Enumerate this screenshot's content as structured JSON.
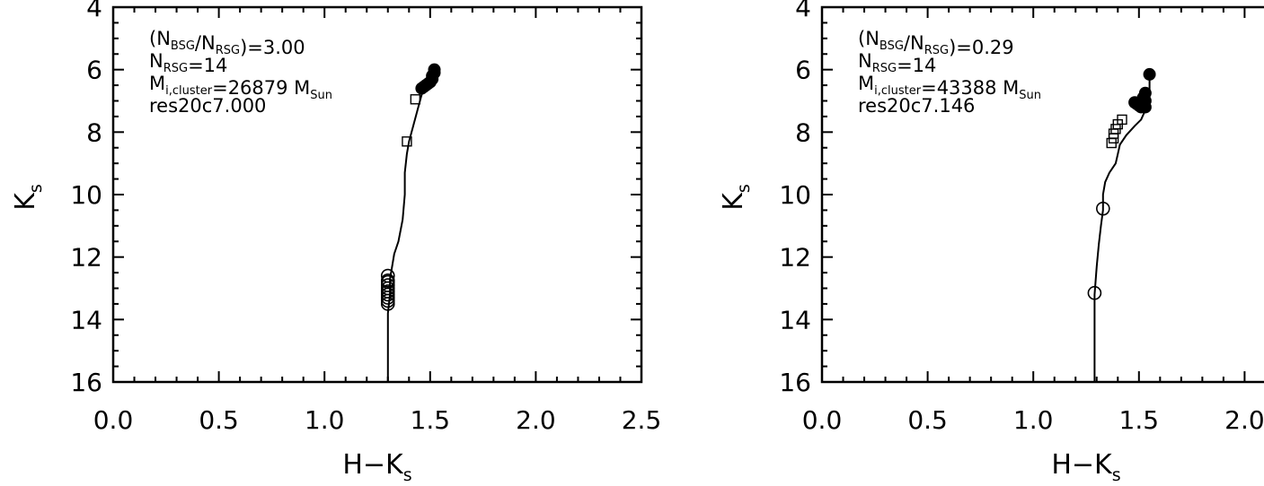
{
  "chart_data": [
    {
      "type": "scatter",
      "xlabel": "H−K",
      "xlabel_sub": "s",
      "ylabel": "K",
      "ylabel_sub": "s",
      "xlim": [
        0.0,
        2.5
      ],
      "ylim": [
        16,
        4
      ],
      "y_inverted": true,
      "x_ticks": [
        "0.0",
        "0.5",
        "1.0",
        "1.5",
        "2.0",
        "2.5"
      ],
      "y_ticks": [
        "4",
        "6",
        "8",
        "10",
        "12",
        "14",
        "16"
      ],
      "annotations": [
        {
          "segments": [
            {
              "t": "(N"
            },
            {
              "t": "BSG",
              "sub": true
            },
            {
              "t": "/N"
            },
            {
              "t": "RSG",
              "sub": true
            },
            {
              "t": ")=3.00"
            }
          ]
        },
        {
          "segments": [
            {
              "t": "N"
            },
            {
              "t": "RSG",
              "sub": true
            },
            {
              "t": "=14"
            }
          ]
        },
        {
          "segments": [
            {
              "t": "M"
            },
            {
              "t": "i,cluster",
              "sub": true
            },
            {
              "t": "=26879 M"
            },
            {
              "t": "Sun",
              "sub": true
            }
          ]
        },
        {
          "segments": [
            {
              "t": "res20c7.000"
            }
          ]
        }
      ],
      "track": [
        [
          1.3,
          16.0
        ],
        [
          1.3,
          15.0
        ],
        [
          1.3,
          13.8
        ],
        [
          1.31,
          13.2
        ],
        [
          1.31,
          12.7
        ],
        [
          1.32,
          12.3
        ],
        [
          1.33,
          11.9
        ],
        [
          1.35,
          11.5
        ],
        [
          1.37,
          10.8
        ],
        [
          1.38,
          10.0
        ],
        [
          1.38,
          9.3
        ],
        [
          1.39,
          8.7
        ],
        [
          1.4,
          8.3
        ],
        [
          1.42,
          7.8
        ],
        [
          1.44,
          7.3
        ],
        [
          1.46,
          6.8
        ],
        [
          1.49,
          6.5
        ],
        [
          1.51,
          6.3
        ],
        [
          1.52,
          6.1
        ]
      ],
      "series": [
        {
          "marker": "filled-circle",
          "x": [
            1.46,
            1.47,
            1.48,
            1.49,
            1.5,
            1.51,
            1.51,
            1.52,
            1.52
          ],
          "y": [
            6.6,
            6.55,
            6.5,
            6.45,
            6.4,
            6.3,
            6.2,
            6.1,
            6.0
          ]
        },
        {
          "marker": "open-circle",
          "x": [
            1.3,
            1.3,
            1.3,
            1.3,
            1.3,
            1.3,
            1.3,
            1.3,
            1.3,
            1.3
          ],
          "y": [
            12.6,
            12.75,
            12.9,
            13.0,
            13.1,
            13.2,
            13.3,
            13.4,
            13.5,
            12.8
          ]
        },
        {
          "marker": "open-square",
          "x": [
            1.43,
            1.39
          ],
          "y": [
            6.95,
            8.3
          ]
        }
      ]
    },
    {
      "type": "scatter",
      "xlabel": "H−K",
      "xlabel_sub": "s",
      "ylabel": "K",
      "ylabel_sub": "s",
      "xlim": [
        0.0,
        2.5
      ],
      "ylim": [
        16,
        4
      ],
      "y_inverted": true,
      "x_ticks": [
        "0.0",
        "0.5",
        "1.0",
        "1.5",
        "2.0"
      ],
      "y_ticks": [
        "4",
        "6",
        "8",
        "10",
        "12",
        "14",
        "16"
      ],
      "annotations": [
        {
          "segments": [
            {
              "t": "(N"
            },
            {
              "t": "BSG",
              "sub": true
            },
            {
              "t": "/N"
            },
            {
              "t": "RSG",
              "sub": true
            },
            {
              "t": ")=0.29"
            }
          ]
        },
        {
          "segments": [
            {
              "t": "N"
            },
            {
              "t": "RSG",
              "sub": true
            },
            {
              "t": "=14"
            }
          ]
        },
        {
          "segments": [
            {
              "t": "M"
            },
            {
              "t": "i,cluster",
              "sub": true
            },
            {
              "t": "=43388 M"
            },
            {
              "t": "Sun",
              "sub": true
            }
          ]
        },
        {
          "segments": [
            {
              "t": "res20c7.146"
            }
          ]
        }
      ],
      "track": [
        [
          1.29,
          16.0
        ],
        [
          1.29,
          15.2
        ],
        [
          1.29,
          14.0
        ],
        [
          1.29,
          13.2
        ],
        [
          1.3,
          12.3
        ],
        [
          1.31,
          11.6
        ],
        [
          1.32,
          11.0
        ],
        [
          1.33,
          10.5
        ],
        [
          1.33,
          10.0
        ],
        [
          1.34,
          9.6
        ],
        [
          1.36,
          9.3
        ],
        [
          1.39,
          9.0
        ],
        [
          1.4,
          8.7
        ],
        [
          1.41,
          8.4
        ],
        [
          1.44,
          8.1
        ],
        [
          1.48,
          7.8
        ],
        [
          1.51,
          7.6
        ],
        [
          1.53,
          7.3
        ],
        [
          1.55,
          6.9
        ],
        [
          1.55,
          6.2
        ]
      ],
      "series": [
        {
          "marker": "filled-circle",
          "x": [
            1.55,
            1.48,
            1.49,
            1.5,
            1.51,
            1.52,
            1.52,
            1.53,
            1.53,
            1.53
          ],
          "y": [
            6.15,
            7.05,
            7.1,
            7.15,
            7.2,
            7.1,
            6.9,
            6.75,
            7.0,
            7.2
          ]
        },
        {
          "marker": "open-circle",
          "x": [
            1.33,
            1.29
          ],
          "y": [
            10.45,
            13.15
          ]
        },
        {
          "marker": "open-square",
          "x": [
            1.37,
            1.38,
            1.38,
            1.39,
            1.4,
            1.42
          ],
          "y": [
            8.35,
            8.2,
            8.05,
            7.9,
            7.75,
            7.6
          ]
        }
      ]
    }
  ]
}
